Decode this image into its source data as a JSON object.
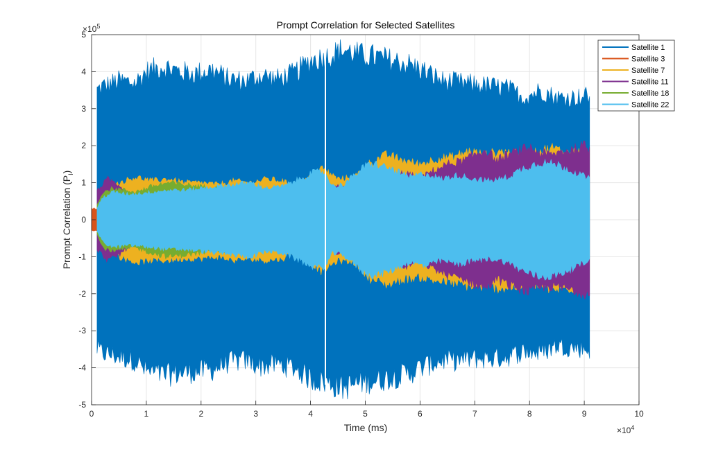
{
  "chart_data": {
    "type": "line",
    "title": "Prompt Correlation for Selected Satellites",
    "xlabel": "Time (ms)",
    "ylabel": "Prompt Correlation (P",
    "ylabel_sub": "I",
    "ylabel_close": ")",
    "xlim": [
      0,
      100000
    ],
    "ylim": [
      -500000,
      500000
    ],
    "x_ticks": [
      0,
      10000,
      20000,
      30000,
      40000,
      50000,
      60000,
      70000,
      80000,
      90000,
      100000
    ],
    "x_tick_labels": [
      "0",
      "1",
      "2",
      "3",
      "4",
      "5",
      "6",
      "7",
      "8",
      "9",
      "10"
    ],
    "y_ticks": [
      -500000,
      -400000,
      -300000,
      -200000,
      -100000,
      0,
      100000,
      200000,
      300000,
      400000,
      500000
    ],
    "y_tick_labels": [
      "-5",
      "-4",
      "-3",
      "-2",
      "-1",
      "0",
      "1",
      "2",
      "3",
      "4",
      "5"
    ],
    "x_exponent": "×10",
    "x_exponent_power": "4",
    "y_exponent": "×10",
    "y_exponent_power": "5",
    "grid": true,
    "legend_position": "top-right",
    "series": [
      {
        "name": "Satellite 1",
        "color": "#0072BD",
        "x": [
          1000,
          2000,
          5000,
          8000,
          10000,
          13000,
          16000,
          19000,
          22000,
          25000,
          28000,
          31000,
          34000,
          37000,
          40000,
          43000,
          46000,
          49000,
          52000,
          55000,
          58000,
          61000,
          64000,
          67000,
          70000,
          73000,
          76000,
          79000,
          82000,
          85000,
          88000,
          91000
        ],
        "upper": [
          350000,
          360000,
          375000,
          370000,
          400000,
          415000,
          400000,
          395000,
          405000,
          380000,
          375000,
          390000,
          380000,
          395000,
          430000,
          440000,
          460000,
          445000,
          440000,
          430000,
          420000,
          400000,
          375000,
          370000,
          365000,
          360000,
          355000,
          330000,
          350000,
          330000,
          330000,
          335000
        ],
        "lower": [
          -350000,
          -360000,
          -370000,
          -380000,
          -410000,
          -420000,
          -415000,
          -410000,
          -405000,
          -385000,
          -380000,
          -395000,
          -390000,
          -400000,
          -430000,
          -440000,
          -455000,
          -440000,
          -435000,
          -425000,
          -415000,
          -395000,
          -380000,
          -380000,
          -375000,
          -375000,
          -370000,
          -355000,
          -360000,
          -340000,
          -345000,
          -350000
        ]
      },
      {
        "name": "Satellite 3",
        "color": "#D95319",
        "x": [
          0,
          1000,
          1500,
          43000
        ],
        "upper": [
          30000,
          30000,
          20000,
          10000
        ],
        "lower": [
          -30000,
          -30000,
          -20000,
          -10000
        ]
      },
      {
        "name": "Satellite 7",
        "color": "#EDB120",
        "x": [
          1000,
          3000,
          5000,
          8000,
          11000,
          14000,
          17000,
          20000,
          23000,
          26000,
          29000,
          32000,
          35000,
          37000,
          40000,
          42000,
          45000,
          48000,
          51000,
          54000,
          57000,
          60000,
          63000,
          66000,
          69000,
          72000,
          75000,
          78000,
          81000,
          84000,
          87000,
          90000,
          91000
        ],
        "upper": [
          40000,
          70000,
          100000,
          115000,
          105000,
          110000,
          100000,
          100000,
          95000,
          105000,
          100000,
          110000,
          105000,
          85000,
          115000,
          140000,
          110000,
          115000,
          155000,
          175000,
          160000,
          150000,
          165000,
          170000,
          185000,
          175000,
          185000,
          175000,
          180000,
          195000,
          180000,
          185000,
          180000
        ],
        "lower": [
          -40000,
          -70000,
          -100000,
          -115000,
          -110000,
          -110000,
          -105000,
          -105000,
          -100000,
          -110000,
          -105000,
          -110000,
          -105000,
          -85000,
          -115000,
          -140000,
          -110000,
          -115000,
          -160000,
          -175000,
          -160000,
          -155000,
          -165000,
          -170000,
          -180000,
          -180000,
          -185000,
          -180000,
          -175000,
          -190000,
          -185000,
          -185000,
          -180000
        ]
      },
      {
        "name": "Satellite 11",
        "color": "#7E2F8E",
        "x": [
          1000,
          3000,
          5000,
          7000,
          9000,
          42000,
          45000,
          48000,
          55000,
          57000,
          60000,
          62000,
          65000,
          68000,
          70000,
          72000,
          74000,
          76000,
          78000,
          80000,
          82000,
          84000,
          86000,
          88000,
          90000,
          91000
        ],
        "upper": [
          80000,
          110000,
          95000,
          70000,
          40000,
          60000,
          90000,
          75000,
          100000,
          130000,
          110000,
          130000,
          150000,
          160000,
          175000,
          190000,
          160000,
          175000,
          185000,
          195000,
          180000,
          175000,
          185000,
          190000,
          200000,
          190000
        ],
        "lower": [
          -80000,
          -110000,
          -95000,
          -70000,
          -40000,
          -60000,
          -90000,
          -75000,
          -100000,
          -130000,
          -110000,
          -130000,
          -150000,
          -160000,
          -175000,
          -185000,
          -160000,
          -175000,
          -185000,
          -195000,
          -185000,
          -180000,
          -185000,
          -190000,
          -200000,
          -190000
        ]
      },
      {
        "name": "Satellite 18",
        "color": "#77AC30",
        "x": [
          1000,
          2000,
          4000,
          6000,
          8000,
          11000,
          14000,
          17000,
          20000,
          23000,
          26000,
          27000
        ],
        "upper": [
          40000,
          75000,
          85000,
          80000,
          75000,
          90000,
          100000,
          95000,
          90000,
          85000,
          80000,
          70000
        ],
        "lower": [
          -40000,
          -75000,
          -85000,
          -80000,
          -75000,
          -90000,
          -100000,
          -95000,
          -90000,
          -85000,
          -80000,
          -70000
        ]
      },
      {
        "name": "Satellite 22",
        "color": "#4DBEEE",
        "x": [
          1000,
          2000,
          4000,
          6000,
          8000,
          11000,
          14000,
          17000,
          20000,
          23000,
          26000,
          29000,
          32000,
          35000,
          38000,
          40000,
          42000,
          43000,
          44000,
          46000,
          48000,
          50000,
          52000,
          55000,
          58000,
          61000,
          64000,
          67000,
          70000,
          73000,
          76000,
          79000,
          82000,
          85000,
          88000,
          91000
        ],
        "upper": [
          30000,
          60000,
          75000,
          70000,
          70000,
          75000,
          80000,
          80000,
          85000,
          90000,
          95000,
          100000,
          85000,
          90000,
          110000,
          125000,
          130000,
          120000,
          90000,
          95000,
          120000,
          145000,
          150000,
          135000,
          115000,
          125000,
          110000,
          120000,
          110000,
          105000,
          115000,
          140000,
          155000,
          150000,
          130000,
          110000
        ],
        "lower": [
          -30000,
          -60000,
          -75000,
          -70000,
          -70000,
          -75000,
          -80000,
          -80000,
          -85000,
          -90000,
          -95000,
          -100000,
          -85000,
          -90000,
          -110000,
          -125000,
          -130000,
          -120000,
          -90000,
          -95000,
          -120000,
          -145000,
          -150000,
          -135000,
          -115000,
          -125000,
          -110000,
          -120000,
          -110000,
          -105000,
          -115000,
          -140000,
          -155000,
          -150000,
          -130000,
          -110000
        ]
      }
    ]
  }
}
